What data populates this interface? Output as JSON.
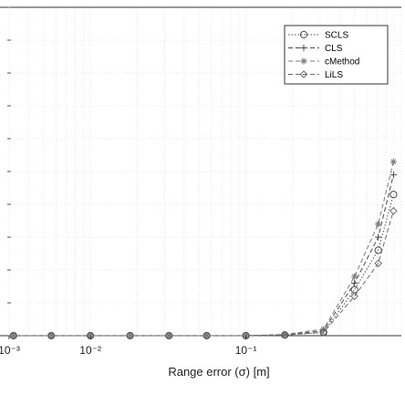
{
  "chart_data": {
    "type": "line",
    "xlabel": "Range error (σ) [m]",
    "x_scale": "log",
    "xlim": [
      0.003,
      1
    ],
    "ylim": [
      0,
      1
    ],
    "grid": true,
    "legend_position": "top-right",
    "x_ticks": [
      {
        "value": 0.001,
        "label": "10⁻³"
      },
      {
        "value": 0.01,
        "label": "10⁻²"
      },
      {
        "value": 0.1,
        "label": "10⁻¹"
      }
    ],
    "series": [
      {
        "name": "SCLS",
        "color": "#4a4a4a",
        "marker": "circle",
        "x": [
          0.0032,
          0.0056,
          0.01,
          0.018,
          0.032,
          0.056,
          0.1,
          0.178,
          0.316,
          0.5,
          0.71,
          0.89
        ],
        "y": [
          0.0,
          0.0,
          0.0,
          0.0,
          0.0,
          0.0,
          0.0,
          0.002,
          0.01,
          0.14,
          0.26,
          0.43
        ]
      },
      {
        "name": "CLS",
        "color": "#4a4a4a",
        "marker": "plus",
        "x": [
          0.0032,
          0.0056,
          0.01,
          0.018,
          0.032,
          0.056,
          0.1,
          0.178,
          0.316,
          0.5,
          0.71,
          0.89
        ],
        "y": [
          0.0,
          0.0,
          0.0,
          0.0,
          0.0,
          0.0,
          0.0,
          0.003,
          0.015,
          0.16,
          0.3,
          0.49
        ]
      },
      {
        "name": "cMethod",
        "color": "#7a7a7a",
        "marker": "star",
        "x": [
          0.0032,
          0.0056,
          0.01,
          0.018,
          0.032,
          0.056,
          0.1,
          0.178,
          0.316,
          0.5,
          0.71,
          0.89
        ],
        "y": [
          0.0,
          0.0,
          0.0,
          0.0,
          0.0,
          0.0,
          0.0,
          0.004,
          0.02,
          0.18,
          0.34,
          0.53
        ]
      },
      {
        "name": "LiLS",
        "color": "#6a6a6a",
        "marker": "diamond",
        "x": [
          0.0032,
          0.0056,
          0.01,
          0.018,
          0.032,
          0.056,
          0.1,
          0.178,
          0.316,
          0.5,
          0.71,
          0.89
        ],
        "y": [
          0.0,
          0.0,
          0.0,
          0.0,
          0.0,
          0.0,
          0.0,
          0.002,
          0.01,
          0.12,
          0.22,
          0.38
        ]
      }
    ]
  }
}
